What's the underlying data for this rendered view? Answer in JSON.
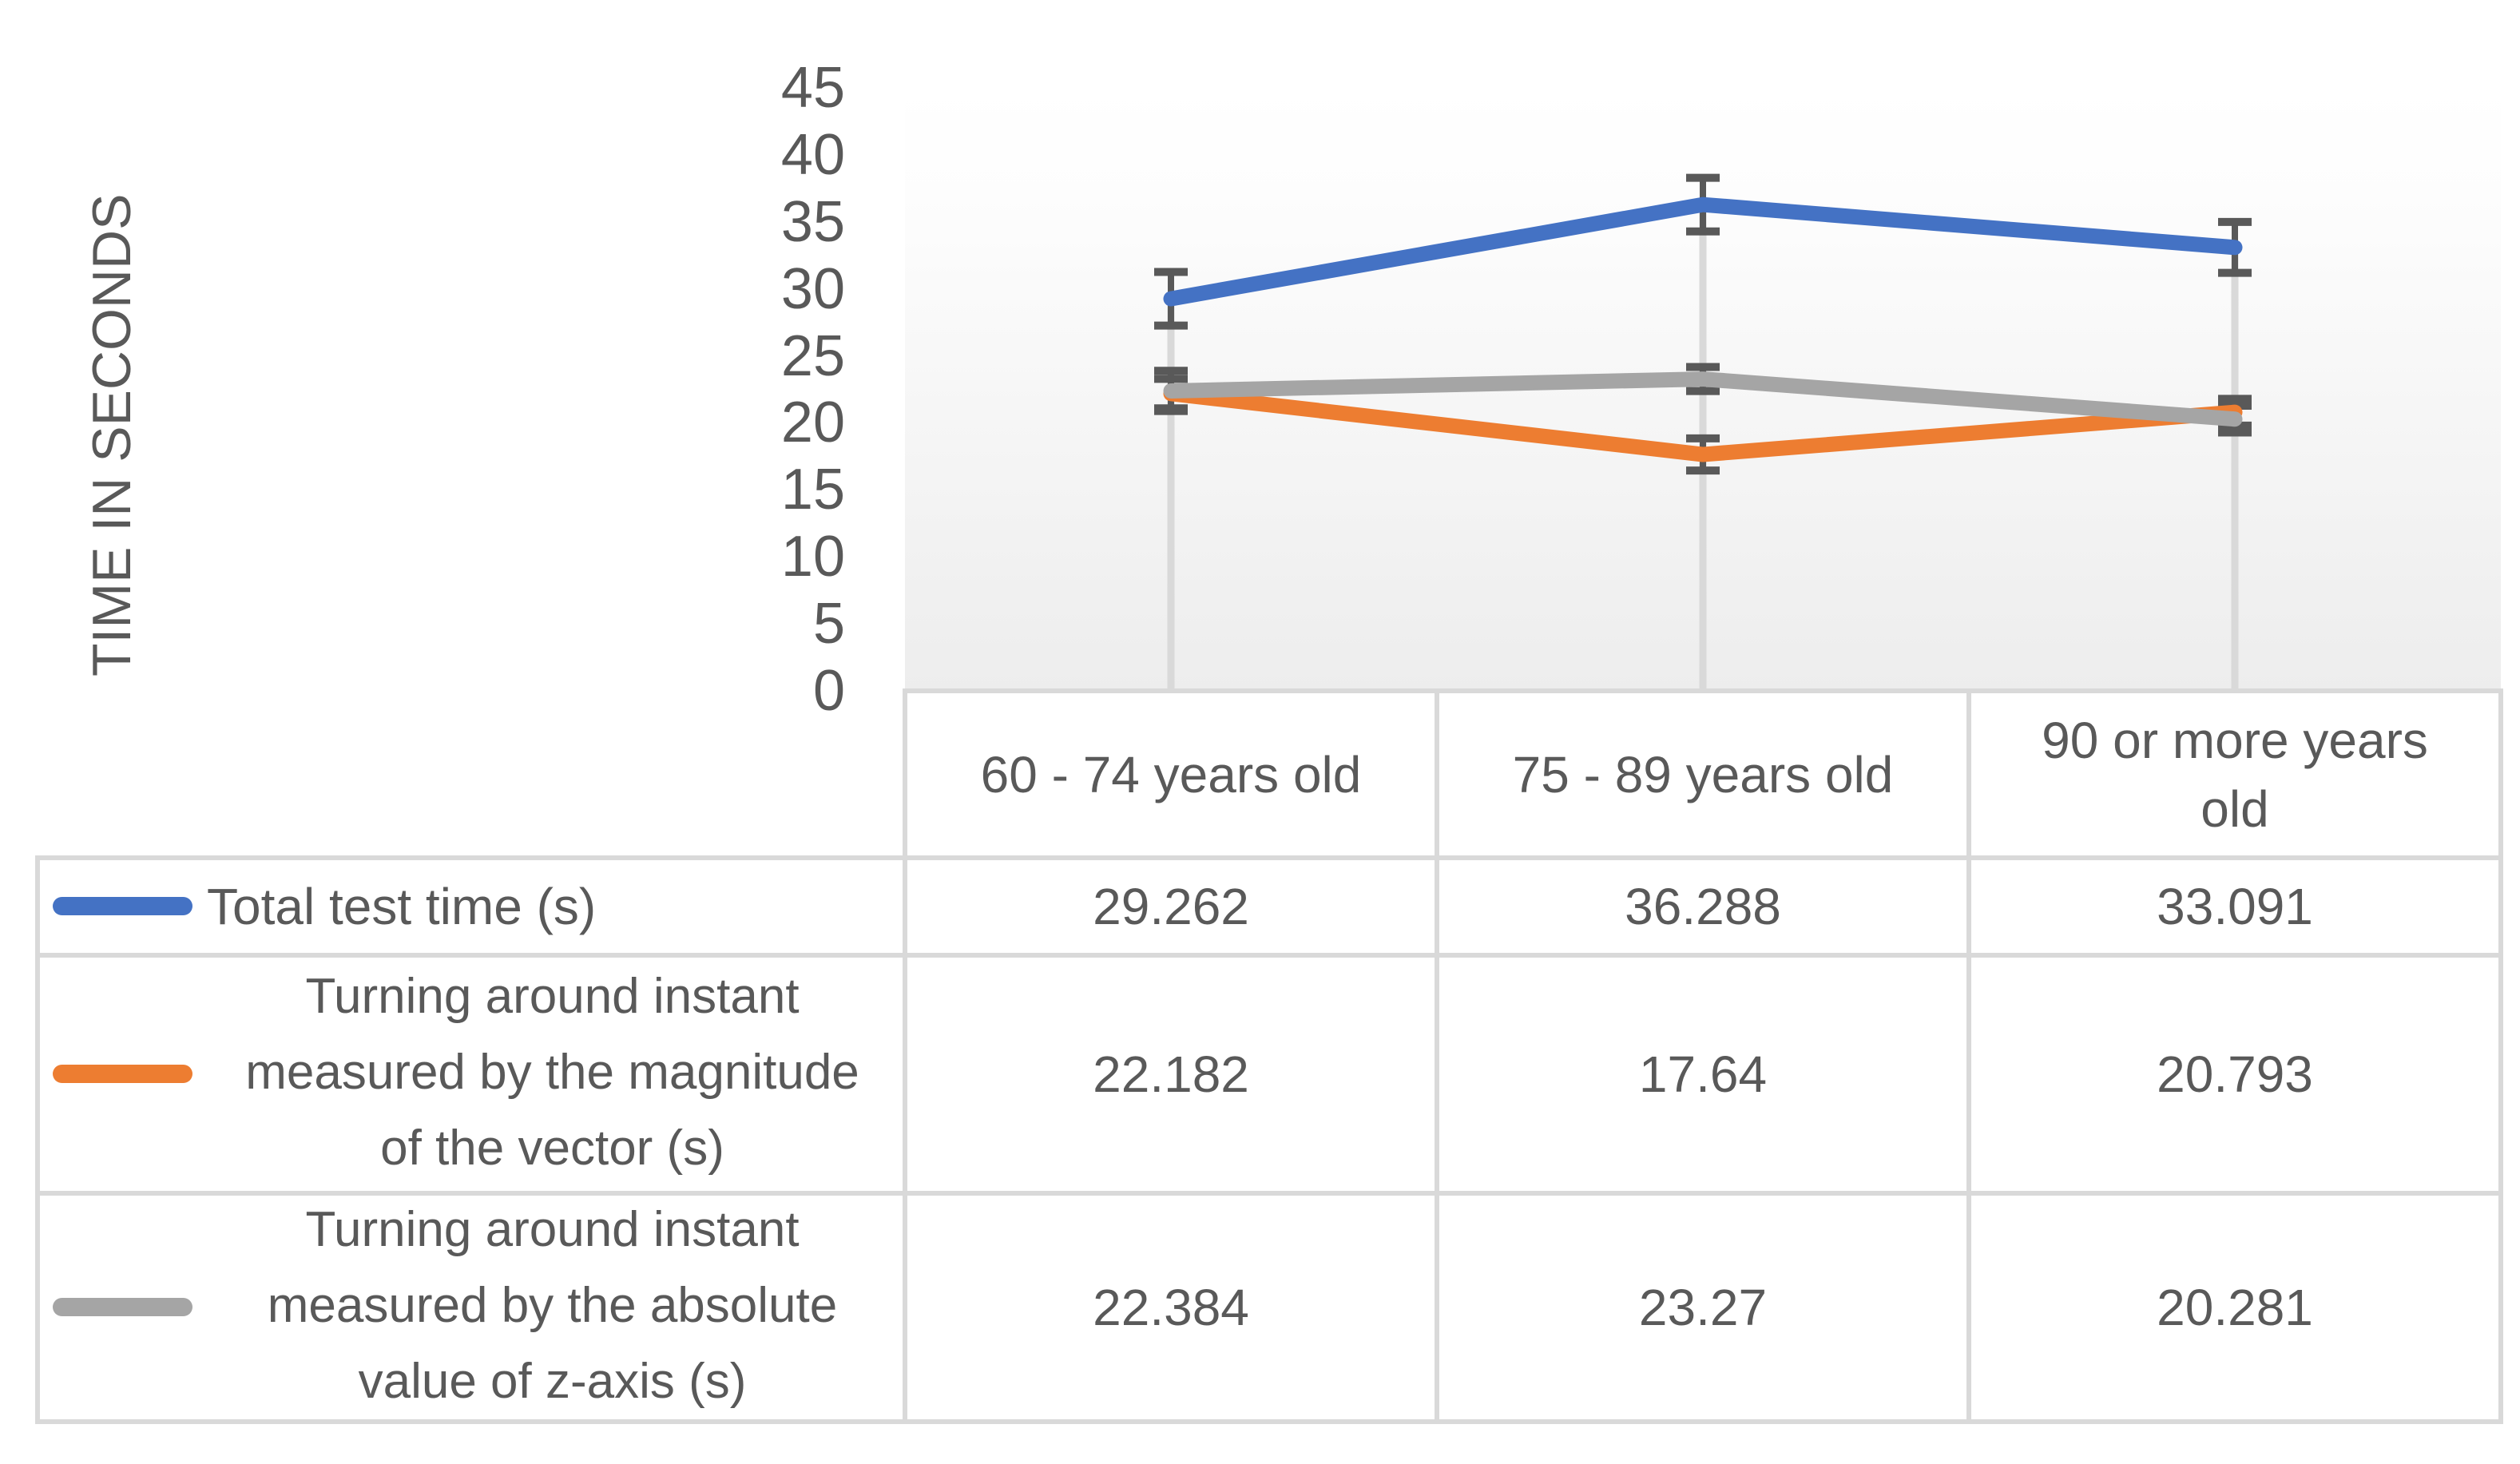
{
  "chart_data": {
    "type": "line",
    "title": "",
    "xlabel": "",
    "ylabel": "TIME IN SECONDS",
    "ylim": [
      0,
      45
    ],
    "yticks": [
      45,
      40,
      35,
      30,
      25,
      20,
      15,
      10,
      5,
      0
    ],
    "grid": "drop-lines-per-category",
    "legend_position": "table-left-keys",
    "categories": [
      "60 - 74 years old",
      "75 - 89 years old",
      "90 or more years old"
    ],
    "series": [
      {
        "name": "Total test time (s)",
        "color": "#4472C4",
        "values": [
          29.262,
          36.288,
          33.091
        ],
        "errors": [
          2.0,
          2.0,
          1.9
        ]
      },
      {
        "name": "Turning around instant measured by the magnitude of the vector (s)",
        "color": "#ED7D31",
        "values": [
          22.182,
          17.64,
          20.793
        ],
        "errors": [
          1.1,
          1.2,
          1.0
        ]
      },
      {
        "name": "Turning around instant measured by the absolute value of z-axis (s)",
        "color": "#A5A5A5",
        "values": [
          22.384,
          23.27,
          20.281
        ],
        "errors": [
          1.5,
          0.9,
          1.0
        ]
      }
    ]
  },
  "colors": {
    "accent_blue": "#4472C4",
    "accent_orange": "#ED7D31",
    "accent_gray": "#A5A5A5",
    "error_bar": "#595959",
    "grid_line": "#d9d9d9",
    "text": "#595959"
  },
  "table": {
    "col_headers": [
      "60 - 74 years old",
      "75 - 89 years old",
      "90 or more years old"
    ],
    "rows": [
      {
        "label_lines": [
          "Total test time (s)"
        ],
        "values": [
          "29.262",
          "36.288",
          "33.091"
        ]
      },
      {
        "label_lines": [
          "Turning around instant",
          "measured by the magnitude",
          "of the vector (s)"
        ],
        "values": [
          "22.182",
          "17.64",
          "20.793"
        ]
      },
      {
        "label_lines": [
          "Turning around instant",
          "measured by the absolute",
          "value of z-axis (s)"
        ],
        "values": [
          "22.384",
          "23.27",
          "20.281"
        ]
      }
    ]
  }
}
